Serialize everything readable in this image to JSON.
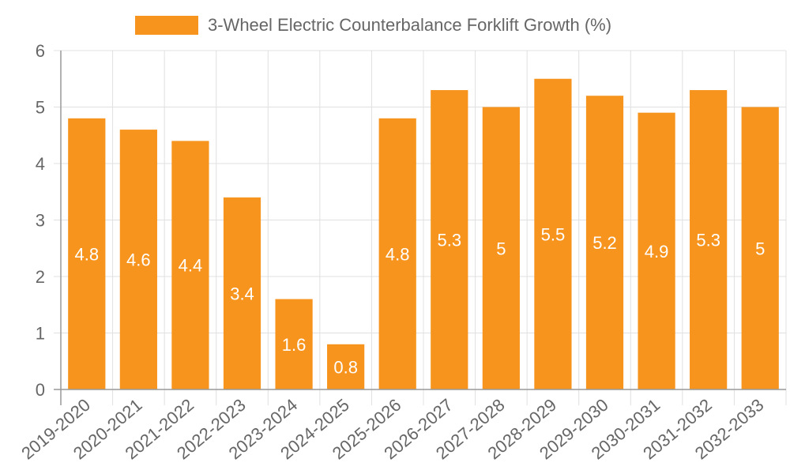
{
  "colors": {
    "bar": "#f7941d",
    "grid": "#e0e0e0",
    "axis": "#999999",
    "tick_text": "#666666",
    "value_label": "#ffffff"
  },
  "legend": {
    "label": "3-Wheel Electric Counterbalance Forklift Growth (%)"
  },
  "chart_data": {
    "type": "bar",
    "title": "",
    "xlabel": "",
    "ylabel": "",
    "ylim": [
      0,
      6
    ],
    "yticks": [
      0,
      1,
      2,
      3,
      4,
      5,
      6
    ],
    "grid": true,
    "legend_position": "top",
    "categories": [
      "2019-2020",
      "2020-2021",
      "2021-2022",
      "2022-2023",
      "2023-2024",
      "2024-2025",
      "2025-2026",
      "2026-2027",
      "2027-2028",
      "2028-2029",
      "2029-2030",
      "2030-2031",
      "2031-2032",
      "2032-2033"
    ],
    "series": [
      {
        "name": "3-Wheel Electric Counterbalance Forklift Growth (%)",
        "values": [
          4.8,
          4.6,
          4.4,
          3.4,
          1.6,
          0.8,
          4.8,
          5.3,
          5,
          5.5,
          5.2,
          4.9,
          5.3,
          5
        ]
      }
    ],
    "data_labels": [
      "4.8",
      "4.6",
      "4.4",
      "3.4",
      "1.6",
      "0.8",
      "4.8",
      "5.3",
      "5",
      "5.5",
      "5.2",
      "4.9",
      "5.3",
      "5"
    ]
  }
}
